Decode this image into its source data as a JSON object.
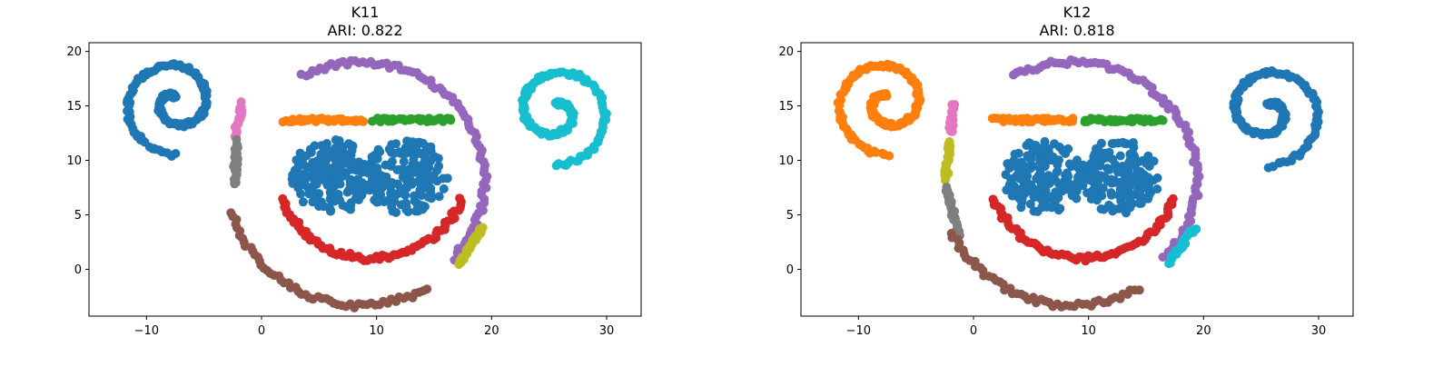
{
  "colors": {
    "blue": "#1f77b4",
    "orange": "#ff7f0e",
    "green": "#2ca02c",
    "red": "#d62728",
    "purple": "#9467bd",
    "brown": "#8c564b",
    "pink": "#e377c2",
    "gray": "#7f7f7f",
    "olive": "#bcbd22",
    "cyan": "#17becf"
  },
  "chart_data": [
    {
      "type": "scatter",
      "title": "K11",
      "subtitle": "ARI: 0.822",
      "xlim": [
        -15,
        33
      ],
      "ylim": [
        -4.3,
        20.8
      ],
      "xticks": [
        -10,
        0,
        10,
        20,
        30
      ],
      "xtick_labels": [
        "−10",
        "0",
        "10",
        "20",
        "30"
      ],
      "yticks": [
        0,
        5,
        10,
        15,
        20
      ],
      "ytick_labels": [
        "0",
        "5",
        "10",
        "15",
        "20"
      ],
      "grid": false,
      "clusters": [
        {
          "color": "blue",
          "shape": "spiral",
          "cx": -7.5,
          "cy": 15.3,
          "r0": 0.6,
          "r1": 4.8,
          "a0": 90,
          "a1": 630,
          "dir": 1
        },
        {
          "color": "pink",
          "shape": "polyline",
          "points": [
            [
              -1.7,
              15.2
            ],
            [
              -2.3,
              12.2
            ]
          ]
        },
        {
          "color": "gray",
          "shape": "polyline",
          "points": [
            [
              -2.2,
              11.8
            ],
            [
              -2.3,
              7.8
            ]
          ]
        },
        {
          "color": "orange",
          "shape": "polyline",
          "points": [
            [
              1.8,
              13.7
            ],
            [
              8.8,
              13.7
            ]
          ]
        },
        {
          "color": "green",
          "shape": "polyline",
          "points": [
            [
              9.7,
              13.7
            ],
            [
              16.4,
              13.7
            ]
          ]
        },
        {
          "color": "purple",
          "shape": "arc",
          "cx": 8.6,
          "cy": 8.2,
          "r": 10.8,
          "a0": 118,
          "a1": -42
        },
        {
          "color": "brown",
          "shape": "arc",
          "cx": 8.6,
          "cy": 8.2,
          "r": 11.5,
          "a0": 195,
          "a1": 300
        },
        {
          "color": "olive",
          "shape": "polyline",
          "points": [
            [
              17.2,
              0.6
            ],
            [
              19.2,
              3.8
            ]
          ]
        },
        {
          "color": "red",
          "shape": "arc",
          "cx": 9.6,
          "cy": 9.3,
          "r": 8.3,
          "a0": 200,
          "a1": 340
        },
        {
          "color": "blue",
          "shape": "blob",
          "cx": 6.1,
          "cy": 8.5,
          "rx": 3.6,
          "ry": 3.4
        },
        {
          "color": "blue",
          "shape": "blob",
          "cx": 12.6,
          "cy": 8.5,
          "rx": 3.6,
          "ry": 3.4
        },
        {
          "color": "cyan",
          "shape": "spiral",
          "cx": 25.6,
          "cy": 14.5,
          "r0": 0.6,
          "r1": 5.0,
          "a0": 90,
          "a1": 630,
          "dir": -1
        }
      ]
    },
    {
      "type": "scatter",
      "title": "K12",
      "subtitle": "ARI: 0.818",
      "xlim": [
        -15,
        33
      ],
      "ylim": [
        -4.3,
        20.8
      ],
      "xticks": [
        -10,
        0,
        10,
        20,
        30
      ],
      "xtick_labels": [
        "−10",
        "0",
        "10",
        "20",
        "30"
      ],
      "yticks": [
        0,
        5,
        10,
        15,
        20
      ],
      "ytick_labels": [
        "0",
        "5",
        "10",
        "15",
        "20"
      ],
      "grid": false,
      "clusters": [
        {
          "color": "orange",
          "shape": "spiral",
          "cx": -7.5,
          "cy": 15.3,
          "r0": 0.6,
          "r1": 4.8,
          "a0": 90,
          "a1": 630,
          "dir": 1
        },
        {
          "color": "pink",
          "shape": "polyline",
          "points": [
            [
              -1.7,
              15.2
            ],
            [
              -2.0,
              12.5
            ]
          ]
        },
        {
          "color": "olive",
          "shape": "polyline",
          "points": [
            [
              -2.1,
              11.8
            ],
            [
              -2.4,
              8.2
            ]
          ]
        },
        {
          "color": "gray",
          "shape": "polyline",
          "points": [
            [
              -2.4,
              7.5
            ],
            [
              -1.2,
              3.0
            ]
          ]
        },
        {
          "color": "orange",
          "shape": "polyline",
          "points": [
            [
              1.8,
              13.7
            ],
            [
              8.8,
              13.7
            ]
          ]
        },
        {
          "color": "green",
          "shape": "polyline",
          "points": [
            [
              9.7,
              13.7
            ],
            [
              16.4,
              13.7
            ]
          ]
        },
        {
          "color": "purple",
          "shape": "arc",
          "cx": 8.6,
          "cy": 8.2,
          "r": 10.8,
          "a0": 118,
          "a1": -42
        },
        {
          "color": "brown",
          "shape": "arc",
          "cx": 8.6,
          "cy": 8.2,
          "r": 11.5,
          "a0": 205,
          "a1": 300
        },
        {
          "color": "cyan",
          "shape": "polyline",
          "points": [
            [
              17.0,
              0.6
            ],
            [
              19.2,
              3.8
            ]
          ]
        },
        {
          "color": "red",
          "shape": "arc",
          "cx": 9.6,
          "cy": 9.3,
          "r": 8.3,
          "a0": 200,
          "a1": 340
        },
        {
          "color": "blue",
          "shape": "blob",
          "cx": 6.1,
          "cy": 8.5,
          "rx": 3.6,
          "ry": 3.4
        },
        {
          "color": "blue",
          "shape": "blob",
          "cx": 12.6,
          "cy": 8.5,
          "rx": 3.6,
          "ry": 3.4
        },
        {
          "color": "blue",
          "shape": "spiral",
          "cx": 25.6,
          "cy": 14.5,
          "r0": 0.6,
          "r1": 5.0,
          "a0": 90,
          "a1": 630,
          "dir": -1
        }
      ]
    }
  ]
}
